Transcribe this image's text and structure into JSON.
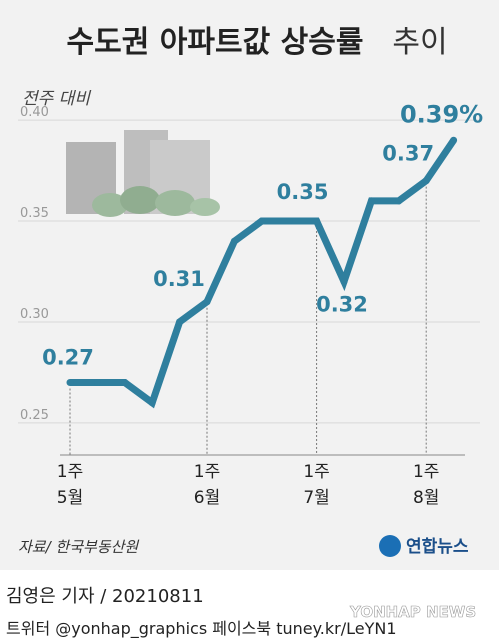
{
  "chart_data": {
    "type": "line",
    "title": "수도권 아파트값 상승률",
    "title_suffix": "추이",
    "subtitle": "전주 대비",
    "categories": [
      "1주\n5월",
      null,
      null,
      null,
      null,
      "1주\n6월",
      null,
      null,
      null,
      "1주\n7월",
      null,
      null,
      null,
      "1주\n8월",
      null
    ],
    "values": [
      0.27,
      0.27,
      0.27,
      0.26,
      0.3,
      0.31,
      0.34,
      0.35,
      0.35,
      0.35,
      0.32,
      0.36,
      0.36,
      0.37,
      0.39
    ],
    "value_labels": [
      "0.27",
      null,
      null,
      null,
      null,
      "0.31",
      null,
      null,
      null,
      "0.35",
      "0.32",
      null,
      null,
      "0.37",
      "0.39%"
    ],
    "color": "#2f7f9e",
    "ylim": [
      0.245,
      0.405
    ],
    "yticks": [
      0.25,
      {
        "value": 0.3,
        "label": "0.30"
      },
      0.35,
      {
        "value": 0.4,
        "label": "0.40"
      }
    ],
    "grid": true,
    "source": "자료/ 한국부동산원",
    "logo": "연합뉴스",
    "byline": "김영은 기자 / 20210811",
    "social": "트위터 @yonhap_graphics  페이스북 tuney.kr/LeYN1",
    "watermark": "YONHAP NEWS"
  }
}
